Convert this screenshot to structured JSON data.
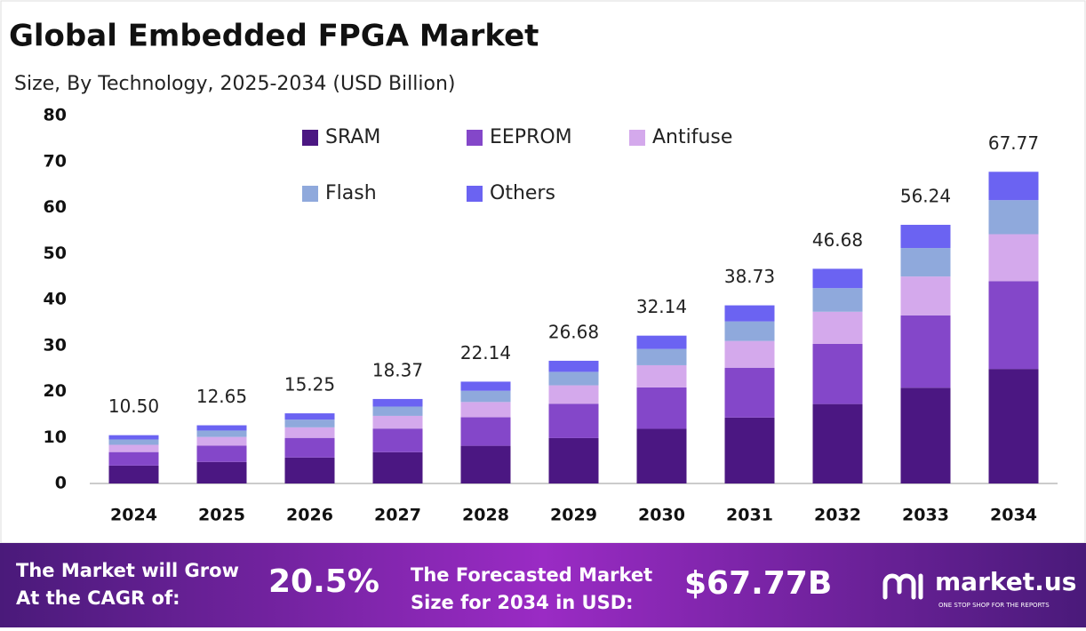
{
  "chart_data": {
    "type": "stacked-bar",
    "title": "Global Embedded FPGA Market",
    "subtitle": "Size, By Technology, 2025-2034 (USD Billion)",
    "categories": [
      "2024",
      "2025",
      "2026",
      "2027",
      "2028",
      "2029",
      "2030",
      "2031",
      "2032",
      "2033",
      "2034"
    ],
    "series": [
      {
        "name": "SRAM",
        "color": "#4b1782",
        "values": [
          3.89,
          4.68,
          5.64,
          6.8,
          8.19,
          9.87,
          11.89,
          14.33,
          17.27,
          20.81,
          24.9
        ]
      },
      {
        "name": "EEPROM",
        "color": "#8447c9",
        "values": [
          2.94,
          3.54,
          4.27,
          5.14,
          6.2,
          7.47,
          9.0,
          10.84,
          13.07,
          15.75,
          19.1
        ]
      },
      {
        "name": "Antifuse",
        "color": "#d4a9ec",
        "values": [
          1.58,
          1.9,
          2.29,
          2.76,
          3.32,
          4.0,
          4.82,
          5.81,
          7.0,
          8.44,
          10.2
        ]
      },
      {
        "name": "Flash",
        "color": "#8fa9dc",
        "values": [
          1.16,
          1.39,
          1.68,
          2.02,
          2.44,
          2.93,
          3.54,
          4.26,
          5.13,
          6.19,
          7.4
        ]
      },
      {
        "name": "Others",
        "color": "#6b63f2",
        "values": [
          0.93,
          1.14,
          1.37,
          1.65,
          1.99,
          2.41,
          2.89,
          3.49,
          4.21,
          5.05,
          6.17
        ]
      }
    ],
    "totals": [
      10.5,
      12.65,
      15.25,
      18.37,
      22.14,
      26.68,
      32.14,
      38.73,
      46.68,
      56.24,
      67.77
    ],
    "total_labels": [
      "10.50",
      "12.65",
      "15.25",
      "18.37",
      "22.14",
      "26.68",
      "32.14",
      "38.73",
      "46.68",
      "56.24",
      "67.77"
    ],
    "ylim": [
      0,
      80
    ],
    "yticks": [
      0,
      10,
      20,
      30,
      40,
      50,
      60,
      70,
      80
    ]
  },
  "footer": {
    "cagr_text": [
      "The Market will Grow",
      "At the CAGR of:"
    ],
    "cagr_value": "20.5%",
    "forecast_text": [
      "The Forecasted Market",
      "Size for 2034 in USD:"
    ],
    "forecast_value": "$67.77B",
    "brand": "market.us",
    "tagline": "ONE STOP SHOP FOR THE REPORTS"
  }
}
